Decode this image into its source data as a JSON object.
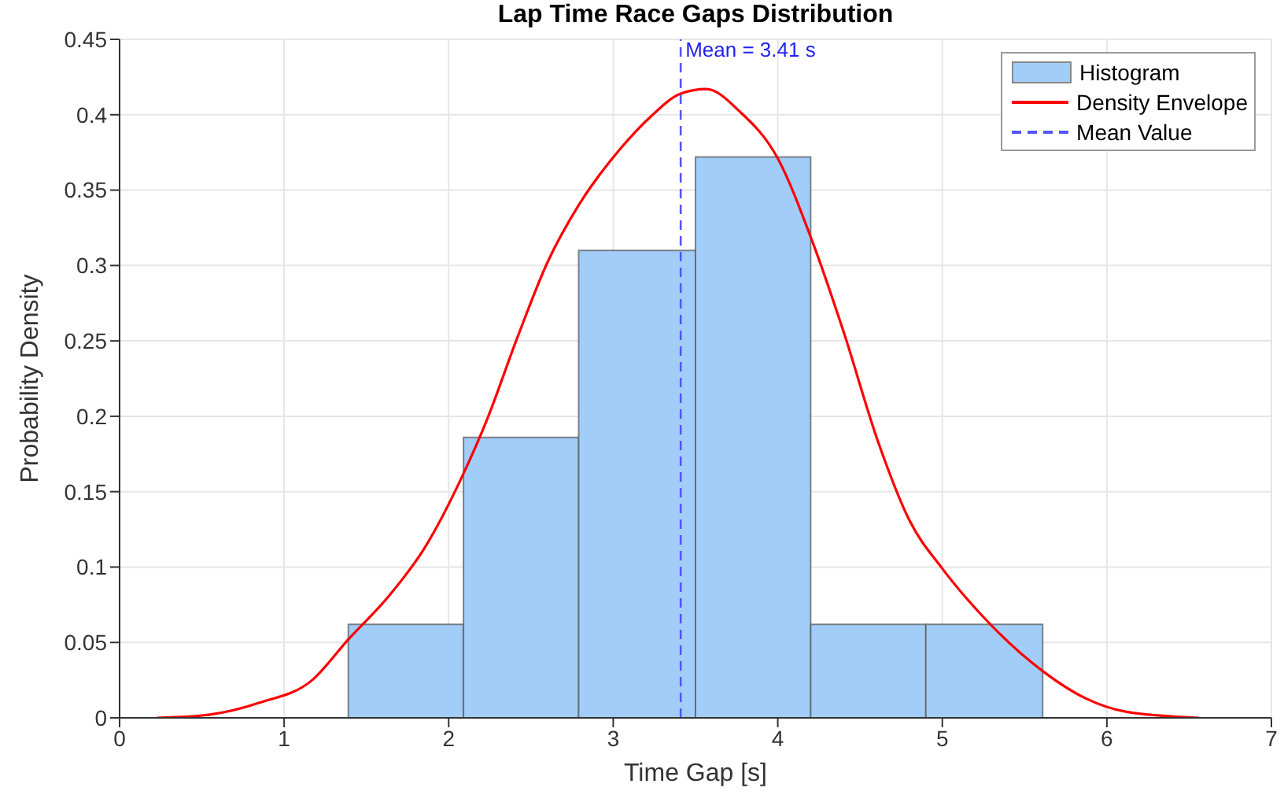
{
  "chart_data": {
    "type": "histogram",
    "title": "Lap Time Race Gaps Distribution",
    "xlabel": "Time Gap [s]",
    "ylabel": "Probability Density",
    "series": [
      {
        "name": "Histogram",
        "color": "#a3cdf9",
        "bins": [
          1.39,
          2.09,
          2.79,
          3.5,
          4.2,
          4.9,
          5.61
        ],
        "values": [
          0.062,
          0.186,
          0.31,
          0.372,
          0.062,
          0.062
        ]
      },
      {
        "name": "Density Envelope",
        "type": "line",
        "color": "#ff0000",
        "x": [
          0.23,
          0.54,
          0.85,
          1.17,
          1.39,
          1.63,
          1.85,
          2.09,
          2.23,
          2.42,
          2.6,
          2.79,
          3.04,
          3.23,
          3.41,
          3.565,
          3.77,
          4.0,
          4.21,
          4.4,
          4.61,
          4.8,
          5.0,
          5.24,
          5.61,
          5.87,
          6.12,
          6.56
        ],
        "values": [
          0,
          0.002,
          0.01,
          0.025,
          0.052,
          0.08,
          0.112,
          0.162,
          0.197,
          0.253,
          0.302,
          0.34,
          0.377,
          0.399,
          0.414,
          0.417,
          0.402,
          0.371,
          0.316,
          0.256,
          0.183,
          0.131,
          0.099,
          0.068,
          0.031,
          0.013,
          0.004,
          0
        ]
      },
      {
        "name": "Mean Value",
        "type": "line",
        "color": "#5555ff",
        "line_style": "dashed",
        "x": [
          3.41,
          3.41
        ],
        "values": [
          0,
          0.45
        ]
      }
    ],
    "annotations": [
      {
        "text": "Mean = 3.41 s",
        "x": 3.41,
        "y": 0.45
      }
    ],
    "xlim": [
      0,
      7
    ],
    "xticks": [
      0,
      1,
      2,
      3,
      4,
      5,
      6,
      7
    ],
    "ylim": [
      0,
      0.45
    ],
    "yticks": [
      0,
      0.05,
      0.1,
      0.15,
      0.2,
      0.25,
      0.3,
      0.35,
      0.4,
      0.45
    ],
    "grid": true,
    "legend": "top right",
    "marker": "none",
    "line_style": "solid"
  }
}
